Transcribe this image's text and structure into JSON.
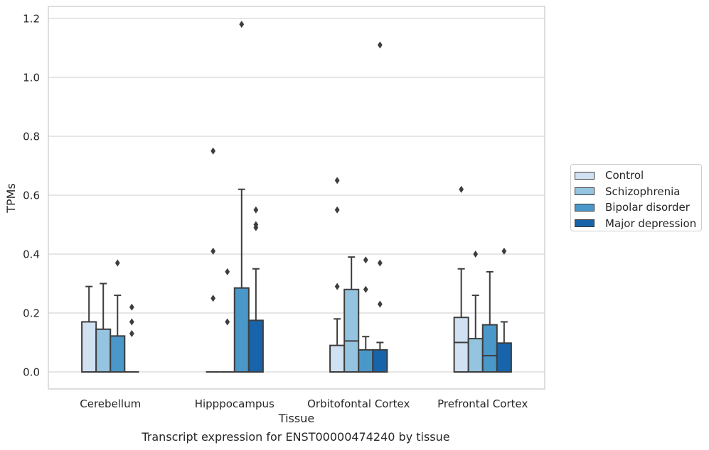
{
  "chart_data": {
    "type": "box",
    "title": "",
    "caption": "Transcript expression for ENST00000474240 by tissue",
    "xlabel": "Tissue",
    "ylabel": "TPMs",
    "ylim": [
      -0.055,
      1.24
    ],
    "yticks": [
      0.0,
      0.2,
      0.4,
      0.6,
      0.8,
      1.0,
      1.2
    ],
    "ytick_labels": [
      "0.0",
      "0.2",
      "0.4",
      "0.6",
      "0.8",
      "1.0",
      "1.2"
    ],
    "grid": "horizontal",
    "legend_position": "right",
    "categories": [
      "Cerebellum",
      "Hipppocampus",
      "Orbitofontal Cortex",
      "Prefrontal Cortex"
    ],
    "series": [
      {
        "name": "Control",
        "color": "#d0e1f2",
        "boxes": [
          {
            "q1": 0.0,
            "median": 0.0,
            "q3": 0.17,
            "whisker_low": 0.0,
            "whisker_high": 0.29,
            "outliers": []
          },
          {
            "q1": 0.0,
            "median": 0.0,
            "q3": 0.0,
            "whisker_low": 0.0,
            "whisker_high": 0.0,
            "outliers": [
              0.75,
              0.41,
              0.25
            ]
          },
          {
            "q1": 0.0,
            "median": 0.0,
            "q3": 0.09,
            "whisker_low": 0.0,
            "whisker_high": 0.18,
            "outliers": [
              0.65,
              0.55,
              0.29
            ]
          },
          {
            "q1": 0.0,
            "median": 0.1,
            "q3": 0.185,
            "whisker_low": 0.0,
            "whisker_high": 0.35,
            "outliers": [
              0.62
            ]
          }
        ]
      },
      {
        "name": "Schizophrenia",
        "color": "#94c4df",
        "boxes": [
          {
            "q1": 0.0,
            "median": 0.0,
            "q3": 0.145,
            "whisker_low": 0.0,
            "whisker_high": 0.3,
            "outliers": []
          },
          {
            "q1": 0.0,
            "median": 0.0,
            "q3": 0.0,
            "whisker_low": 0.0,
            "whisker_high": 0.0,
            "outliers": [
              0.34,
              0.17
            ]
          },
          {
            "q1": 0.0,
            "median": 0.105,
            "q3": 0.28,
            "whisker_low": 0.0,
            "whisker_high": 0.39,
            "outliers": []
          },
          {
            "q1": 0.0,
            "median": 0.0,
            "q3": 0.113,
            "whisker_low": 0.0,
            "whisker_high": 0.26,
            "outliers": [
              0.4
            ]
          }
        ]
      },
      {
        "name": "Bipolar disorder",
        "color": "#4a98c9",
        "boxes": [
          {
            "q1": 0.0,
            "median": 0.0,
            "q3": 0.122,
            "whisker_low": 0.0,
            "whisker_high": 0.26,
            "outliers": [
              0.37
            ]
          },
          {
            "q1": 0.0,
            "median": 0.0,
            "q3": 0.285,
            "whisker_low": 0.0,
            "whisker_high": 0.62,
            "outliers": [
              1.18
            ]
          },
          {
            "q1": 0.0,
            "median": 0.0,
            "q3": 0.075,
            "whisker_low": 0.0,
            "whisker_high": 0.12,
            "outliers": [
              0.38,
              0.28
            ]
          },
          {
            "q1": 0.0,
            "median": 0.055,
            "q3": 0.16,
            "whisker_low": 0.0,
            "whisker_high": 0.34,
            "outliers": []
          }
        ]
      },
      {
        "name": "Major depression",
        "color": "#1764ab",
        "boxes": [
          {
            "q1": 0.0,
            "median": 0.0,
            "q3": 0.0,
            "whisker_low": 0.0,
            "whisker_high": 0.0,
            "outliers": [
              0.22,
              0.17,
              0.13
            ]
          },
          {
            "q1": 0.0,
            "median": 0.0,
            "q3": 0.175,
            "whisker_low": 0.0,
            "whisker_high": 0.35,
            "outliers": [
              0.55,
              0.5,
              0.49
            ]
          },
          {
            "q1": 0.0,
            "median": 0.0,
            "q3": 0.075,
            "whisker_low": 0.0,
            "whisker_high": 0.1,
            "outliers": [
              1.11,
              0.37,
              0.23
            ]
          },
          {
            "q1": 0.0,
            "median": 0.0,
            "q3": 0.098,
            "whisker_low": 0.0,
            "whisker_high": 0.17,
            "outliers": [
              0.41
            ]
          }
        ]
      }
    ]
  }
}
